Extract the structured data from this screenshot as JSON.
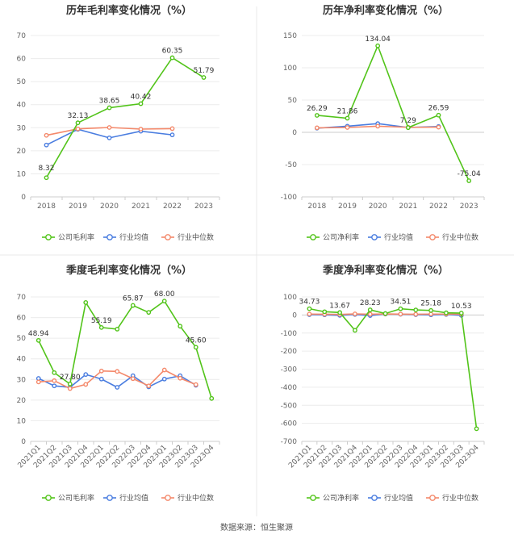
{
  "source_label": "数据来源：恒生聚源",
  "colors": {
    "company": "#52c41a",
    "industry_avg": "#4a7de0",
    "industry_median": "#f4896b"
  },
  "chart_data": [
    {
      "type": "line",
      "title": "历年毛利率变化情况（%）",
      "categories": [
        "2018",
        "2019",
        "2020",
        "2021",
        "2022",
        "2023"
      ],
      "ylim": [
        0,
        70
      ],
      "yticks": [
        0,
        10,
        20,
        30,
        40,
        50,
        60,
        70
      ],
      "grid": true,
      "legend_position": "bottom",
      "series": [
        {
          "name": "公司毛利率",
          "values": [
            8.32,
            32.13,
            38.65,
            40.42,
            60.35,
            51.79
          ],
          "labels": [
            "8.32",
            "32.13",
            "38.65",
            "40.42",
            "60.35",
            "51.79"
          ]
        },
        {
          "name": "行业均值",
          "values": [
            22.5,
            29.3,
            25.6,
            28.5,
            26.9,
            null
          ]
        },
        {
          "name": "行业中位数",
          "values": [
            26.7,
            29.5,
            30.1,
            29.4,
            29.6,
            null
          ]
        }
      ]
    },
    {
      "type": "line",
      "title": "历年净利率变化情况（%）",
      "categories": [
        "2018",
        "2019",
        "2020",
        "2021",
        "2022",
        "2023"
      ],
      "ylim": [
        -100,
        150
      ],
      "yticks": [
        -100,
        -50,
        0,
        50,
        100,
        150
      ],
      "grid": true,
      "legend_position": "bottom",
      "series": [
        {
          "name": "公司净利率",
          "values": [
            26.29,
            21.86,
            134.04,
            7.29,
            26.59,
            -75.04
          ],
          "labels": [
            "26.29",
            "21.86",
            "134.04",
            "7.29",
            "26.59",
            "-75.04"
          ]
        },
        {
          "name": "行业均值",
          "values": [
            6.5,
            9.5,
            13.5,
            7.5,
            9.0,
            null
          ]
        },
        {
          "name": "行业中位数",
          "values": [
            7.0,
            7.5,
            9.5,
            7.8,
            8.0,
            null
          ]
        }
      ]
    },
    {
      "type": "line",
      "title": "季度毛利率变化情况（%）",
      "categories": [
        "2021Q1",
        "2021Q2",
        "2021Q3",
        "2021Q4",
        "2022Q1",
        "2022Q2",
        "2022Q3",
        "2022Q4",
        "2023Q1",
        "2023Q2",
        "2023Q3",
        "2023Q4"
      ],
      "ylim": [
        0,
        70
      ],
      "yticks": [
        0,
        10,
        20,
        30,
        40,
        50,
        60,
        70
      ],
      "grid": true,
      "legend_position": "bottom",
      "series": [
        {
          "name": "公司毛利率",
          "values": [
            48.94,
            33.3,
            27.8,
            67.3,
            55.19,
            54.4,
            65.87,
            62.5,
            68.0,
            55.8,
            45.6,
            20.8
          ],
          "labels": [
            "48.94",
            "",
            "27.80",
            "",
            "55.19",
            "",
            "65.87",
            "",
            "68.00",
            "",
            "45.60",
            ""
          ]
        },
        {
          "name": "行业均值",
          "values": [
            30.5,
            26.9,
            26.2,
            32.4,
            30.2,
            26.2,
            31.8,
            26.4,
            30.2,
            31.8,
            27.2,
            null
          ]
        },
        {
          "name": "行业中位数",
          "values": [
            28.8,
            29.4,
            25.6,
            27.6,
            34.1,
            33.9,
            30.4,
            26.9,
            34.6,
            30.6,
            27.5,
            null
          ]
        }
      ]
    },
    {
      "type": "line",
      "title": "季度净利率变化情况（%）",
      "categories": [
        "2021Q1",
        "2021Q2",
        "2021Q3",
        "2021Q4",
        "2022Q1",
        "2022Q2",
        "2022Q3",
        "2022Q4",
        "2023Q1",
        "2023Q2",
        "2023Q3",
        "2023Q4"
      ],
      "ylim": [
        -700,
        100
      ],
      "yticks": [
        -700,
        -600,
        -500,
        -400,
        -300,
        -200,
        -100,
        0,
        100
      ],
      "grid": true,
      "legend_position": "bottom",
      "series": [
        {
          "name": "公司净利率",
          "values": [
            34.73,
            18.0,
            13.67,
            -85.0,
            28.23,
            8.0,
            34.51,
            28.0,
            25.18,
            12.0,
            10.53,
            -630.0
          ],
          "labels": [
            "34.73",
            "",
            "13.67",
            "",
            "28.23",
            "",
            "34.51",
            "",
            "25.18",
            "",
            "10.53",
            ""
          ]
        },
        {
          "name": "行业均值",
          "values": [
            2.0,
            1.0,
            -2.0,
            3.0,
            -3.0,
            5.0,
            4.0,
            2.0,
            1.0,
            3.0,
            -2.0,
            null
          ]
        },
        {
          "name": "行业中位数",
          "values": [
            5.0,
            4.0,
            3.0,
            6.0,
            4.0,
            6.0,
            5.0,
            4.0,
            5.0,
            5.0,
            4.0,
            null
          ]
        }
      ]
    }
  ]
}
